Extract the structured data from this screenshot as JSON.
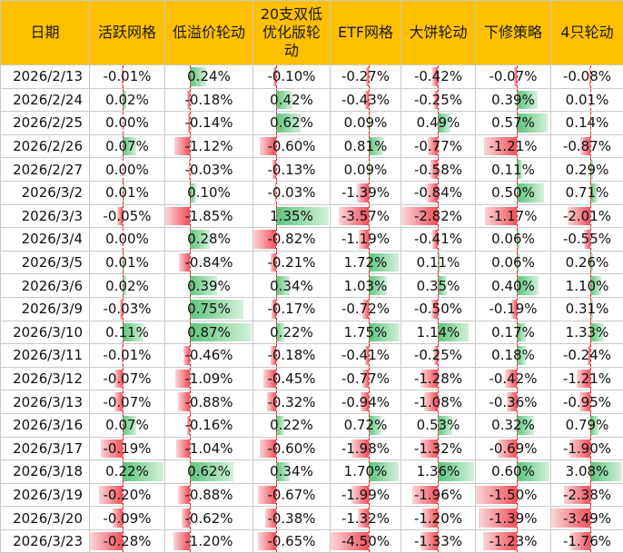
{
  "headers": [
    "日期",
    "活跃网格",
    "低溢价轮动",
    "20支双低\n优化版轮\n动",
    "ETF网格",
    "大饼轮动",
    "下修策略",
    "4只轮动"
  ],
  "colors": {
    "header_bg": "#ffc000",
    "neg_bar": "#f0505a",
    "pos_bar": "#5cc47a",
    "axis": "#e8202a"
  },
  "rows": [
    {
      "date": "2026/2/13",
      "values": [
        -0.01,
        0.24,
        -0.1,
        -0.27,
        -0.42,
        -0.07,
        -0.08
      ]
    },
    {
      "date": "2026/2/24",
      "values": [
        0.02,
        -0.18,
        0.42,
        -0.43,
        -0.25,
        0.39,
        0.01
      ]
    },
    {
      "date": "2026/2/25",
      "values": [
        0.0,
        -0.14,
        0.62,
        0.09,
        0.49,
        0.57,
        0.14
      ]
    },
    {
      "date": "2026/2/26",
      "values": [
        0.07,
        -1.12,
        -0.6,
        0.81,
        -0.77,
        -1.21,
        -0.87
      ]
    },
    {
      "date": "2026/2/27",
      "values": [
        0.0,
        -0.03,
        -0.13,
        0.09,
        -0.58,
        0.11,
        0.29
      ]
    },
    {
      "date": "2026/3/2",
      "values": [
        0.01,
        0.1,
        -0.03,
        -1.39,
        -0.84,
        0.5,
        0.71
      ]
    },
    {
      "date": "2026/3/3",
      "values": [
        -0.05,
        -1.85,
        1.35,
        -3.57,
        -2.82,
        -1.17,
        -2.01
      ]
    },
    {
      "date": "2026/3/4",
      "values": [
        0.0,
        0.28,
        -0.82,
        -1.19,
        -0.41,
        0.06,
        -0.55
      ]
    },
    {
      "date": "2026/3/5",
      "values": [
        0.01,
        -0.84,
        -0.21,
        1.72,
        0.11,
        0.06,
        0.26
      ]
    },
    {
      "date": "2026/3/6",
      "values": [
        0.02,
        0.39,
        0.34,
        1.03,
        0.35,
        0.4,
        1.1
      ]
    },
    {
      "date": "2026/3/9",
      "values": [
        -0.03,
        0.75,
        -0.17,
        -0.72,
        -0.5,
        -0.19,
        0.31
      ]
    },
    {
      "date": "2026/3/10",
      "values": [
        0.11,
        0.87,
        0.22,
        1.75,
        1.14,
        0.17,
        1.33
      ]
    },
    {
      "date": "2026/3/11",
      "values": [
        -0.01,
        -0.46,
        -0.18,
        -0.41,
        -0.25,
        0.18,
        -0.24
      ]
    },
    {
      "date": "2026/3/12",
      "values": [
        -0.07,
        -1.09,
        -0.45,
        -0.77,
        -1.28,
        -0.42,
        -1.21
      ]
    },
    {
      "date": "2026/3/13",
      "values": [
        -0.07,
        -0.88,
        -0.32,
        -0.94,
        -1.08,
        -0.36,
        -0.95
      ]
    },
    {
      "date": "2026/3/16",
      "values": [
        0.07,
        -0.16,
        0.22,
        0.72,
        0.53,
        0.32,
        0.79
      ]
    },
    {
      "date": "2026/3/17",
      "values": [
        -0.19,
        -1.04,
        -0.6,
        -1.98,
        -1.32,
        -0.69,
        -1.9
      ]
    },
    {
      "date": "2026/3/18",
      "values": [
        0.22,
        0.62,
        0.34,
        1.7,
        1.36,
        0.6,
        3.08
      ]
    },
    {
      "date": "2026/3/19",
      "values": [
        -0.2,
        -0.88,
        -0.67,
        -1.99,
        -1.96,
        -1.5,
        -2.38
      ]
    },
    {
      "date": "2026/3/20",
      "values": [
        -0.09,
        -0.62,
        -0.38,
        -1.32,
        -1.2,
        -1.39,
        -3.49
      ]
    },
    {
      "date": "2026/3/23",
      "values": [
        -0.28,
        -1.2,
        -0.65,
        -4.5,
        -1.33,
        -1.23,
        -1.76
      ]
    }
  ]
}
